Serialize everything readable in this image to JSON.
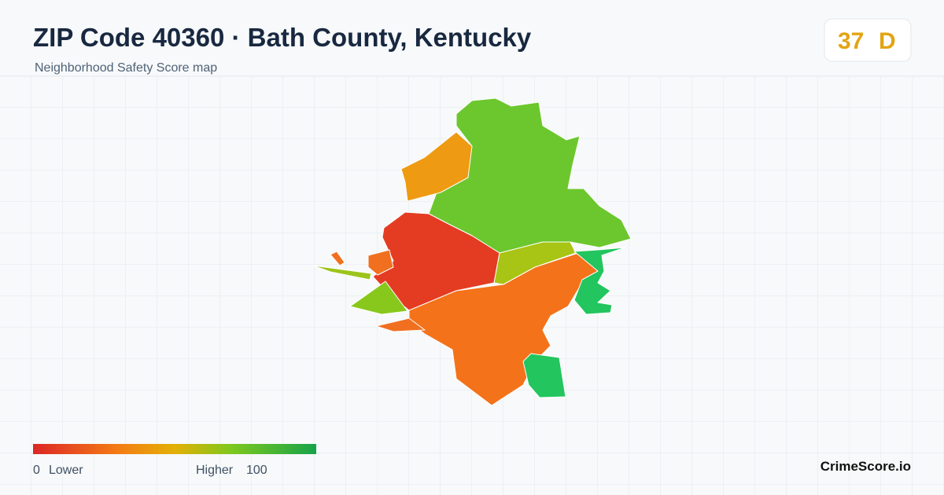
{
  "header": {
    "title": "ZIP Code 40360 · Bath County, Kentucky",
    "subtitle": "Neighborhood Safety Score map"
  },
  "score": {
    "value": 37,
    "grade": "D"
  },
  "legend": {
    "min": 0,
    "min_label": "Lower",
    "max_label": "Higher",
    "max": 100
  },
  "brand": "CrimeScore.io"
}
